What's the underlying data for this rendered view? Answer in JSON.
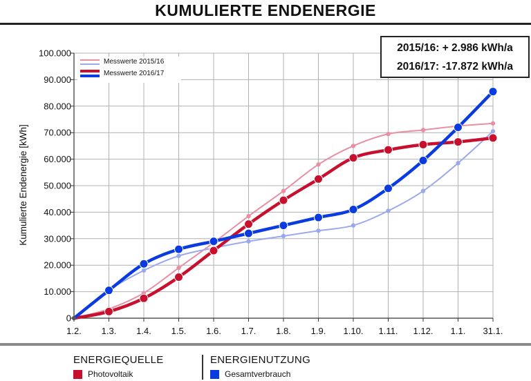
{
  "page_title": "KUMULIERTE ENDENERGIE",
  "stats": {
    "line1": "2015/16: + 2.986 kWh/a",
    "line2": "2016/17: -17.872 kWh/a"
  },
  "chart_data": {
    "type": "line",
    "title": "KUMULIERTE ENDENERGIE",
    "ylabel": "Kumulierte Endenergie [kWh]",
    "xlabel": "",
    "categories": [
      "1.2.",
      "1.3.",
      "1.4.",
      "1.5.",
      "1.6.",
      "1.7.",
      "1.8.",
      "1.9.",
      "1.10.",
      "1.11.",
      "1.12.",
      "1.1.",
      "31.1."
    ],
    "y_tick_labels": [
      "0",
      "10.000",
      "20.000",
      "30.000",
      "40.000",
      "50.000",
      "60.000",
      "70.000",
      "80.000",
      "90.000",
      "100.000"
    ],
    "ylim": [
      0,
      100000
    ],
    "grid": true,
    "legend": {
      "placement": "top-left",
      "entries": [
        "Messwerte 2015/16",
        "Messwerte 2016/17"
      ]
    },
    "series": [
      {
        "group": "Messwerte 2015/16",
        "role": "Photovoltaik",
        "color": "#e88fa3",
        "weight": "thin",
        "values": [
          0,
          3500,
          9500,
          19000,
          28500,
          38500,
          48000,
          58000,
          65000,
          69500,
          71000,
          72500,
          73500
        ]
      },
      {
        "group": "Messwerte 2015/16",
        "role": "Gesamtverbrauch",
        "color": "#9aa8ee",
        "weight": "thin",
        "values": [
          0,
          10500,
          18000,
          23500,
          26500,
          29000,
          31000,
          33000,
          35000,
          40500,
          48000,
          58500,
          70500
        ]
      },
      {
        "group": "Messwerte 2016/17",
        "role": "Photovoltaik",
        "color": "#c8102e",
        "weight": "thick",
        "values": [
          0,
          2500,
          7500,
          15500,
          25500,
          35500,
          44500,
          52500,
          60500,
          63500,
          65500,
          66500,
          68000
        ]
      },
      {
        "group": "Messwerte 2016/17",
        "role": "Gesamtverbrauch",
        "color": "#0a3be0",
        "weight": "thick",
        "values": [
          0,
          10500,
          20500,
          26000,
          29000,
          32000,
          35000,
          38000,
          41000,
          49000,
          59500,
          72000,
          85500
        ]
      }
    ]
  },
  "categories_legend": {
    "source_heading": "ENERGIEQUELLE",
    "source_item": "Photovoltaik",
    "source_color": "#c8102e",
    "use_heading": "ENERGIENUTZUNG",
    "use_item": "Gesamtverbrauch",
    "use_color": "#0a3be0"
  }
}
